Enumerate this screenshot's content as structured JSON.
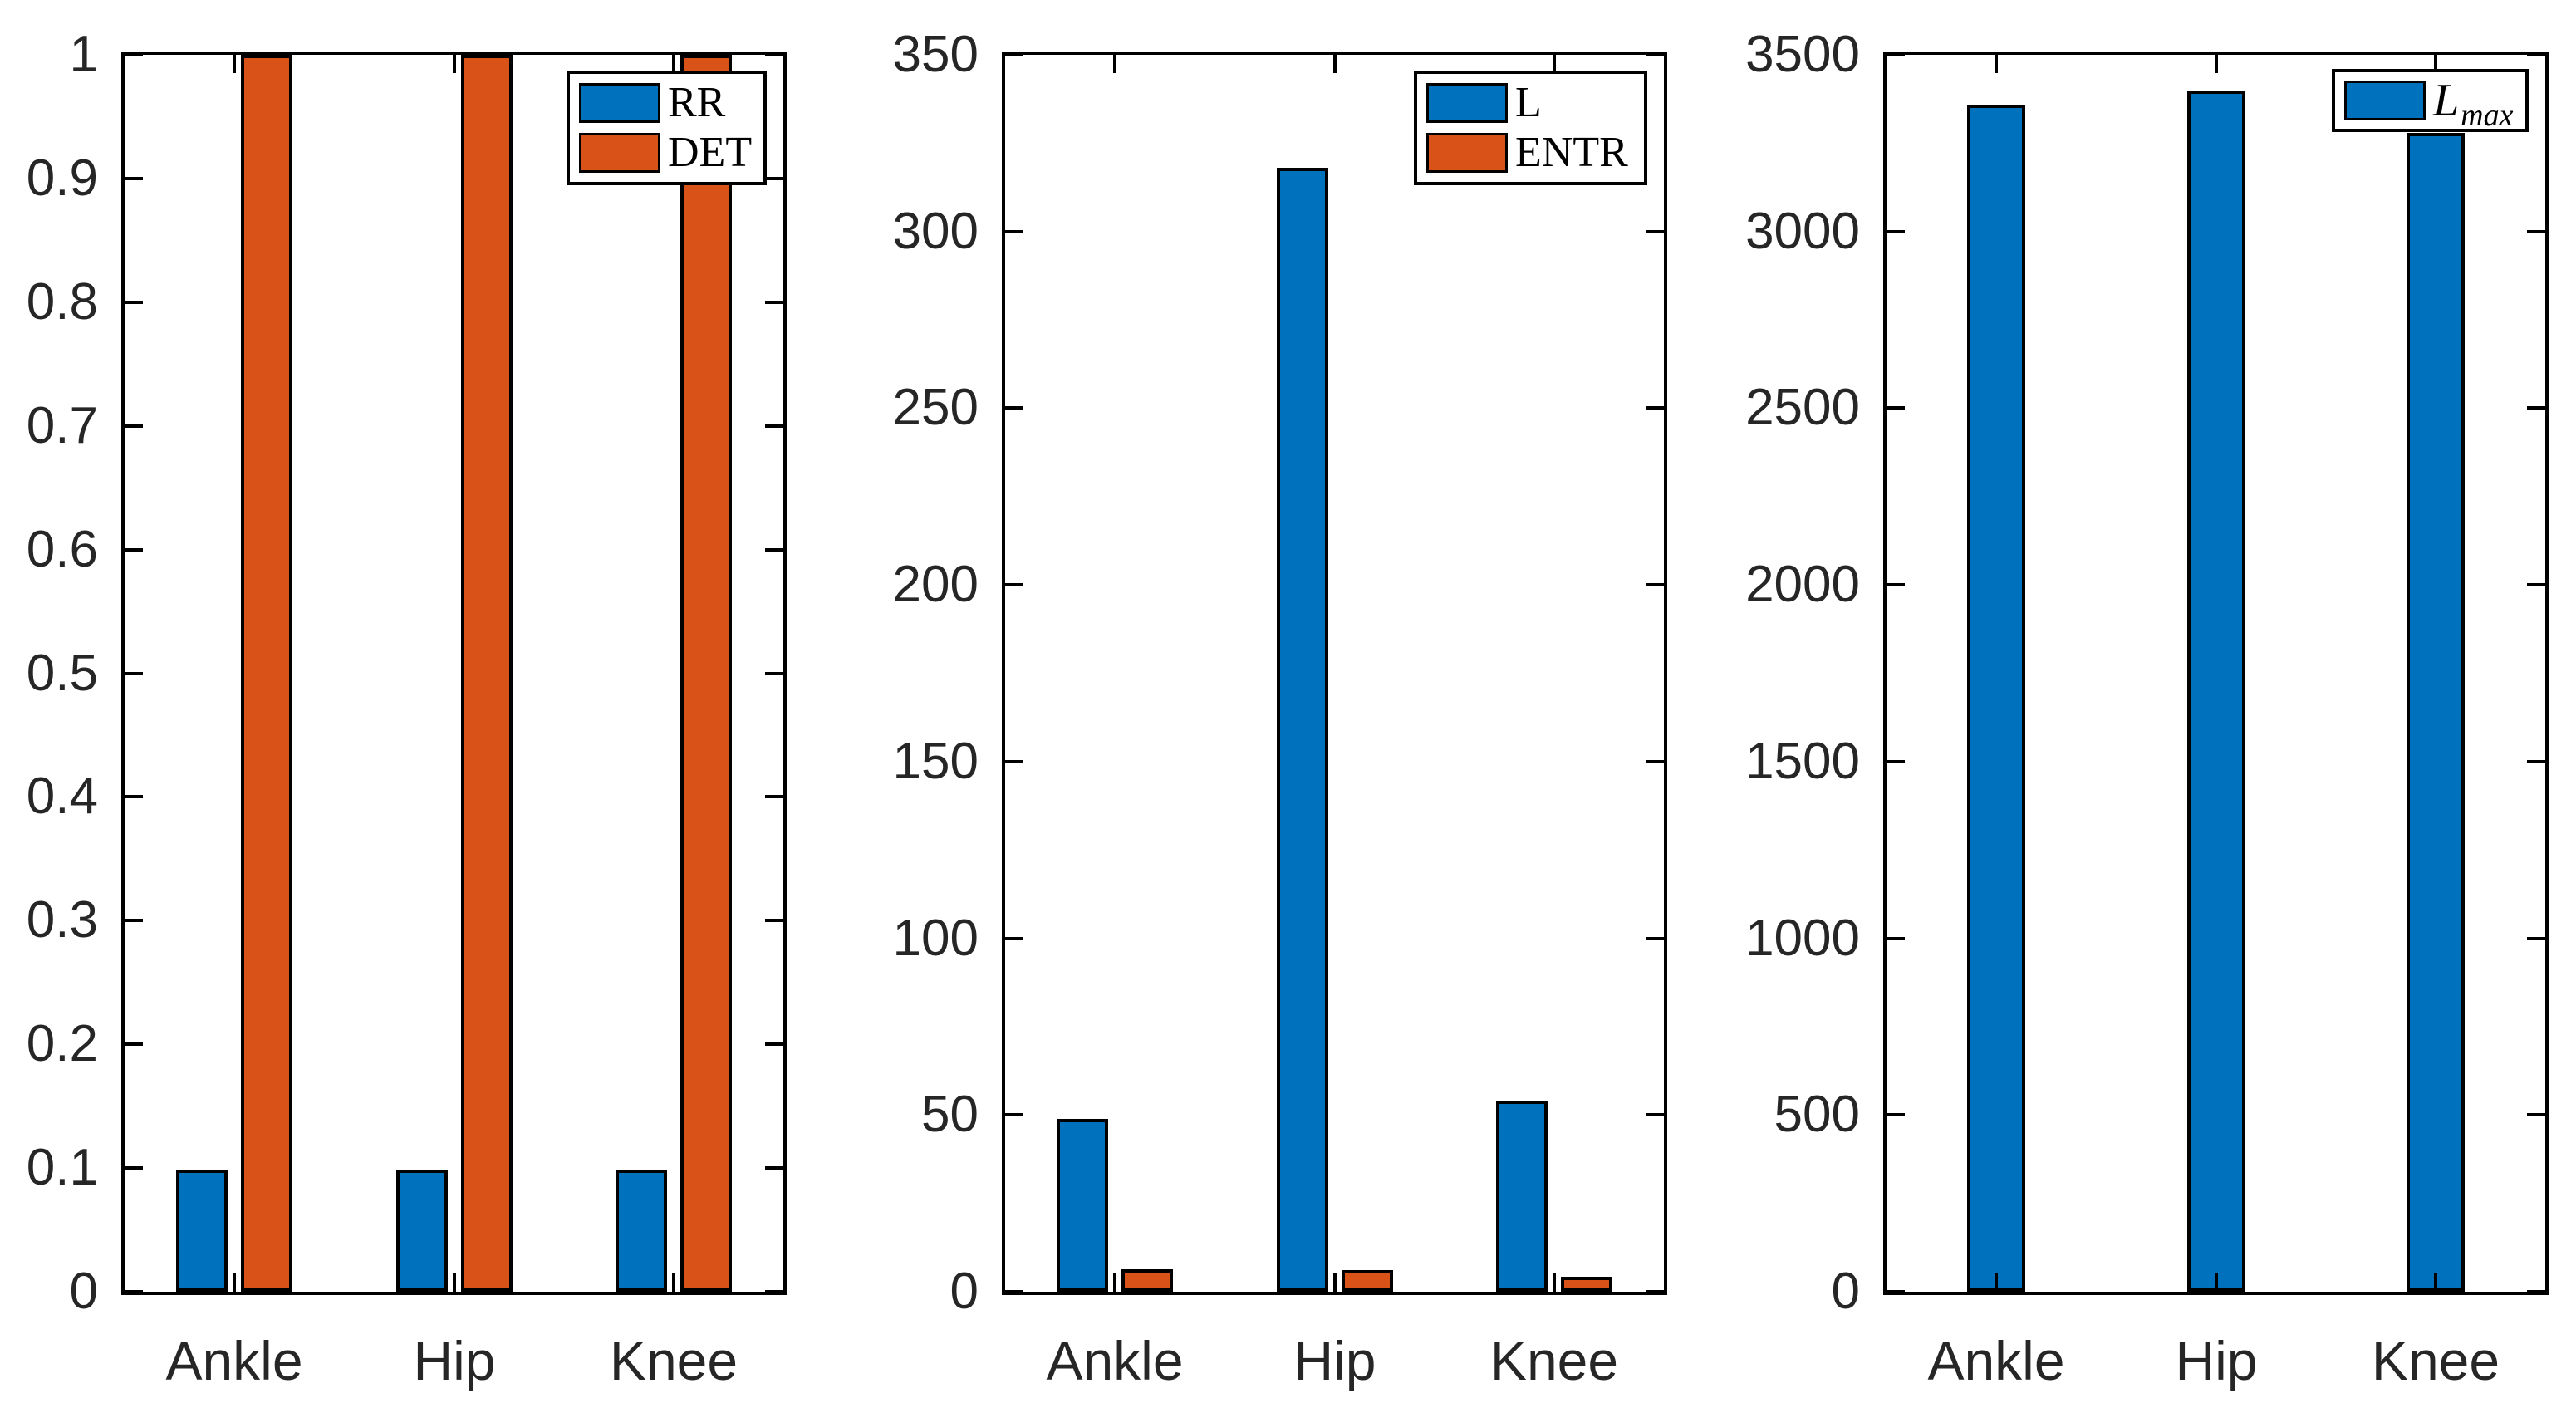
{
  "figure": {
    "background": "#ffffff",
    "text_color": "#262626",
    "axis_color": "#000000"
  },
  "chart_data": [
    {
      "type": "bar",
      "title": "",
      "xlabel": "",
      "ylabel": "",
      "categories": [
        "Ankle",
        "Hip",
        "Knee"
      ],
      "series": [
        {
          "name": "RR",
          "color": "#0072BD",
          "values": [
            0.099,
            0.099,
            0.099
          ],
          "legend_label": {
            "main": "RR",
            "sub": ""
          }
        },
        {
          "name": "DET",
          "color": "#D95319",
          "values": [
            1.0,
            1.0,
            1.0
          ],
          "legend_label": {
            "main": "DET",
            "sub": ""
          }
        }
      ],
      "ylim": [
        0,
        1
      ],
      "ytick_values": [
        0,
        0.1,
        0.2,
        0.3,
        0.4,
        0.5,
        0.6,
        0.7,
        0.8,
        0.9,
        1
      ],
      "ytick_labels": [
        "0",
        "0.1",
        "0.2",
        "0.3",
        "0.4",
        "0.5",
        "0.6",
        "0.7",
        "0.8",
        "0.9",
        "1"
      ],
      "grid": false,
      "legend_position": "northeast"
    },
    {
      "type": "bar",
      "title": "",
      "xlabel": "",
      "ylabel": "",
      "categories": [
        "Ankle",
        "Hip",
        "Knee"
      ],
      "series": [
        {
          "name": "L",
          "color": "#0072BD",
          "values": [
            49,
            318,
            54
          ],
          "legend_label": {
            "main": "L",
            "sub": ""
          }
        },
        {
          "name": "ENTR",
          "color": "#D95319",
          "values": [
            6.3,
            6.2,
            4.2
          ],
          "legend_label": {
            "main": "ENTR",
            "sub": ""
          }
        }
      ],
      "ylim": [
        0,
        350
      ],
      "ytick_values": [
        0,
        50,
        100,
        150,
        200,
        250,
        300,
        350
      ],
      "ytick_labels": [
        "0",
        "50",
        "100",
        "150",
        "200",
        "250",
        "300",
        "350"
      ],
      "grid": false,
      "legend_position": "northeast"
    },
    {
      "type": "bar",
      "title": "",
      "xlabel": "",
      "ylabel": "",
      "categories": [
        "Ankle",
        "Hip",
        "Knee"
      ],
      "series": [
        {
          "name": "L_max",
          "color": "#0072BD",
          "values": [
            3360,
            3400,
            3280
          ],
          "legend_label": {
            "main": "L",
            "sub": "max"
          }
        }
      ],
      "ylim": [
        0,
        3500
      ],
      "ytick_values": [
        0,
        500,
        1000,
        1500,
        2000,
        2500,
        3000,
        3500
      ],
      "ytick_labels": [
        "0",
        "500",
        "1000",
        "1500",
        "2000",
        "2500",
        "3000",
        "3500"
      ],
      "grid": false,
      "legend_position": "northeast"
    }
  ]
}
